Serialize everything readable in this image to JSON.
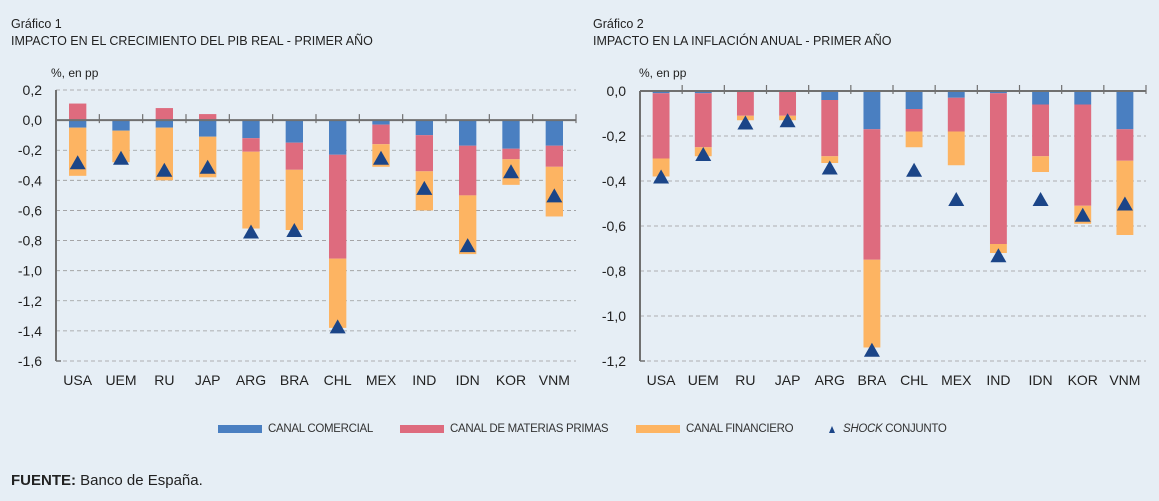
{
  "colors": {
    "comercial": "#4a7fc1",
    "materias": "#de6b7e",
    "financiero": "#fdb462",
    "shock": "#1b4588",
    "axis": "#707070",
    "grid": "#9a9a9a"
  },
  "legend": {
    "comercial": "CANAL COMERCIAL",
    "materias": "CANAL DE MATERIAS PRIMAS",
    "financiero": "CANAL FINANCIERO",
    "shock_italic": "SHOCK",
    "shock_rest": " CONJUNTO"
  },
  "source": {
    "label": "FUENTE:",
    "text": " Banco de España."
  },
  "chart_data": [
    {
      "type": "bar",
      "stacked": true,
      "number": "Gráfico 1",
      "title": "IMPACTO EN EL CRECIMIENTO DEL PIB REAL - PRIMER AÑO",
      "ylabel": "%, en pp",
      "xlabel": "",
      "ylim": [
        -1.6,
        0.2
      ],
      "yticks": [
        0.2,
        0.0,
        -0.2,
        -0.4,
        -0.6,
        -0.8,
        -1.0,
        -1.2,
        -1.4,
        -1.6
      ],
      "ytick_labels": [
        "0,2",
        "0,0",
        "-0,2",
        "-0,4",
        "-0,6",
        "-0,8",
        "-1,0",
        "-1,2",
        "-1,4",
        "-1,6"
      ],
      "grid": true,
      "categories": [
        "USA",
        "UEM",
        "RU",
        "JAP",
        "ARG",
        "BRA",
        "CHL",
        "MEX",
        "IND",
        "IDN",
        "KOR",
        "VNM"
      ],
      "series": [
        {
          "name": "CANAL COMERCIAL",
          "key": "comercial",
          "values": [
            -0.05,
            -0.07,
            -0.05,
            -0.11,
            -0.12,
            -0.15,
            -0.23,
            -0.03,
            -0.1,
            -0.17,
            -0.19,
            -0.17
          ]
        },
        {
          "name": "CANAL DE MATERIAS PRIMAS",
          "key": "materias",
          "values": [
            0.11,
            0.0,
            0.08,
            0.04,
            -0.09,
            -0.18,
            -0.69,
            -0.13,
            -0.24,
            -0.33,
            -0.07,
            -0.14
          ]
        },
        {
          "name": "CANAL FINANCIERO",
          "key": "financiero",
          "values": [
            -0.32,
            -0.21,
            -0.35,
            -0.27,
            -0.51,
            -0.4,
            -0.46,
            -0.15,
            -0.26,
            -0.39,
            -0.17,
            -0.33
          ]
        },
        {
          "name": "SHOCK CONJUNTO",
          "key": "shock",
          "marker": "triangle",
          "values": [
            -0.28,
            -0.25,
            -0.33,
            -0.31,
            -0.74,
            -0.73,
            -1.37,
            -0.25,
            -0.45,
            -0.83,
            -0.34,
            -0.5
          ]
        }
      ]
    },
    {
      "type": "bar",
      "stacked": true,
      "number": "Gráfico 2",
      "title": "IMPACTO EN LA INFLACIÓN ANUAL - PRIMER AÑO",
      "ylabel": "%, en pp",
      "xlabel": "",
      "ylim": [
        -1.2,
        0.0
      ],
      "yticks": [
        0.0,
        -0.2,
        -0.4,
        -0.6,
        -0.8,
        -1.0,
        -1.2
      ],
      "ytick_labels": [
        "0,0",
        "-0,2",
        "-0,4",
        "-0,6",
        "-0,8",
        "-1,0",
        "-1,2"
      ],
      "grid": true,
      "categories": [
        "USA",
        "UEM",
        "RU",
        "JAP",
        "ARG",
        "BRA",
        "CHL",
        "MEX",
        "IND",
        "IDN",
        "KOR",
        "VNM"
      ],
      "series": [
        {
          "name": "CANAL COMERCIAL",
          "key": "comercial",
          "values": [
            -0.01,
            -0.01,
            0.0,
            0.0,
            -0.04,
            -0.17,
            -0.08,
            -0.03,
            -0.01,
            -0.06,
            -0.06,
            -0.17
          ]
        },
        {
          "name": "CANAL DE MATERIAS PRIMAS",
          "key": "materias",
          "values": [
            -0.29,
            -0.24,
            -0.11,
            -0.11,
            -0.25,
            -0.58,
            -0.1,
            -0.15,
            -0.67,
            -0.23,
            -0.45,
            -0.14
          ]
        },
        {
          "name": "CANAL FINANCIERO",
          "key": "financiero",
          "values": [
            -0.08,
            -0.04,
            -0.02,
            -0.02,
            -0.03,
            -0.39,
            -0.07,
            -0.15,
            -0.04,
            -0.07,
            -0.08,
            -0.33
          ]
        },
        {
          "name": "SHOCK CONJUNTO",
          "key": "shock",
          "marker": "triangle",
          "values": [
            -0.38,
            -0.28,
            -0.14,
            -0.13,
            -0.34,
            -1.15,
            -0.35,
            -0.48,
            -0.73,
            -0.48,
            -0.55,
            -0.5
          ]
        }
      ]
    }
  ]
}
